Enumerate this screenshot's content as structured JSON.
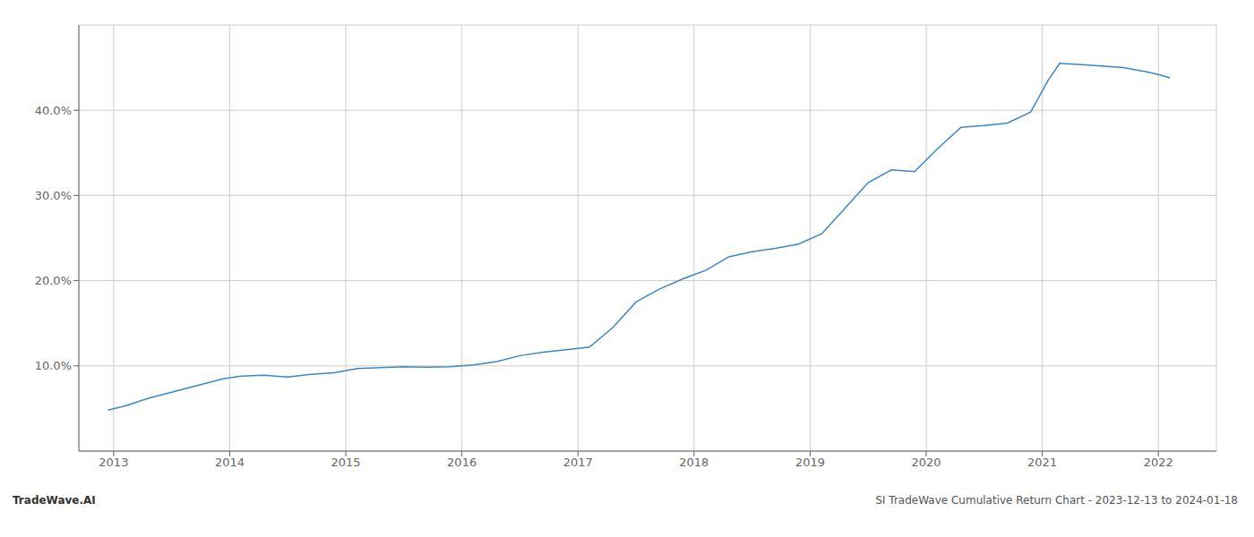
{
  "chart_data": {
    "type": "line",
    "x": [
      2012.95,
      2013.1,
      2013.3,
      2013.55,
      2013.75,
      2013.95,
      2014.1,
      2014.3,
      2014.5,
      2014.7,
      2014.9,
      2015.1,
      2015.3,
      2015.5,
      2015.7,
      2015.9,
      2016.1,
      2016.3,
      2016.5,
      2016.7,
      2016.9,
      2017.1,
      2017.3,
      2017.5,
      2017.7,
      2017.9,
      2018.1,
      2018.3,
      2018.5,
      2018.7,
      2018.9,
      2019.1,
      2019.3,
      2019.5,
      2019.7,
      2019.9,
      2020.1,
      2020.3,
      2020.5,
      2020.7,
      2020.9,
      2021.05,
      2021.15,
      2021.4,
      2021.7,
      2021.9,
      2022.0,
      2022.1
    ],
    "values": [
      4.8,
      5.3,
      6.2,
      7.1,
      7.8,
      8.5,
      8.8,
      8.9,
      8.7,
      9.0,
      9.2,
      9.7,
      9.8,
      9.9,
      9.85,
      9.9,
      10.1,
      10.5,
      11.2,
      11.6,
      11.9,
      12.2,
      14.5,
      17.5,
      19.0,
      20.2,
      21.2,
      22.8,
      23.4,
      23.8,
      24.3,
      25.5,
      28.5,
      31.5,
      33.0,
      32.8,
      35.5,
      38.0,
      38.2,
      38.5,
      39.8,
      43.5,
      45.5,
      45.3,
      45.0,
      44.5,
      44.2,
      43.8
    ],
    "color": "#3a87c8",
    "xlim": [
      2012.7,
      2022.5
    ],
    "xticks": [
      2013,
      2014,
      2015,
      2016,
      2017,
      2018,
      2019,
      2020,
      2021,
      2022
    ],
    "ylim": [
      0,
      50
    ],
    "yticks": [
      {
        "value": 10.0,
        "label": "10.0%"
      },
      {
        "value": 20.0,
        "label": "20.0%"
      },
      {
        "value": 30.0,
        "label": "30.0%"
      },
      {
        "value": 40.0,
        "label": "40.0%"
      }
    ],
    "grid": true,
    "annotations": [
      "TradeWave.AI",
      "SI TradeWave Cumulative Return Chart - 2023-12-13 to 2024-01-18"
    ]
  }
}
